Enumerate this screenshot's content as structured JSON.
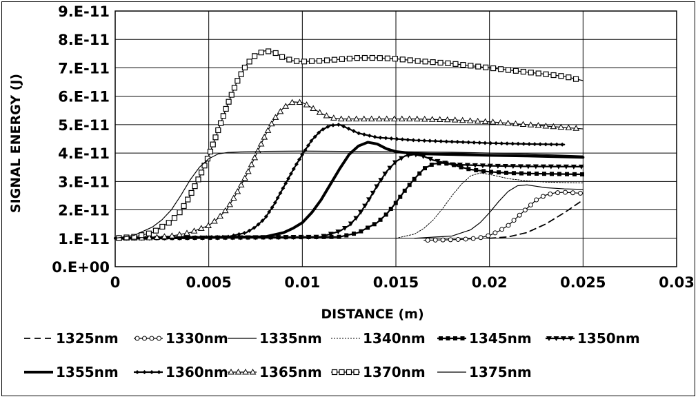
{
  "chart_data": {
    "type": "line",
    "title": "",
    "xlabel": "DISTANCE (m)",
    "ylabel": "SIGNAL ENERGY (J)",
    "xlim": [
      0,
      0.03
    ],
    "ylim": [
      0,
      9e-11
    ],
    "x_ticks": [
      {
        "value": 0,
        "label": "0"
      },
      {
        "value": 0.005,
        "label": "0.005"
      },
      {
        "value": 0.01,
        "label": "0.01"
      },
      {
        "value": 0.015,
        "label": "0.015"
      },
      {
        "value": 0.02,
        "label": "0.02"
      },
      {
        "value": 0.025,
        "label": "0.025"
      },
      {
        "value": 0.03,
        "label": "0.03"
      }
    ],
    "y_ticks": [
      {
        "value": 0,
        "label": "0.E+00"
      },
      {
        "value": 1e-11,
        "label": "1.E-11"
      },
      {
        "value": 2e-11,
        "label": "2.E-11"
      },
      {
        "value": 3e-11,
        "label": "3.E-11"
      },
      {
        "value": 4e-11,
        "label": "4.E-11"
      },
      {
        "value": 5e-11,
        "label": "5.E-11"
      },
      {
        "value": 6e-11,
        "label": "6.E-11"
      },
      {
        "value": 7e-11,
        "label": "7.E-11"
      },
      {
        "value": 8e-11,
        "label": "8.E-11"
      },
      {
        "value": 9e-11,
        "label": "9.E-11"
      }
    ],
    "grid": true,
    "legend_position": "bottom",
    "series": [
      {
        "name": "1325nm",
        "style": "dashed",
        "marker": "none",
        "x": [
          0.02,
          0.021,
          0.022,
          0.023,
          0.024,
          0.025
        ],
        "y": [
          1e-11,
          1.05e-11,
          1.2e-11,
          1.5e-11,
          1.9e-11,
          2.35e-11
        ]
      },
      {
        "name": "1330nm",
        "style": "thin",
        "marker": "circle",
        "x": [
          0.0165,
          0.018,
          0.019,
          0.0195,
          0.02,
          0.0205,
          0.021,
          0.0215,
          0.022,
          0.0225,
          0.023,
          0.0235,
          0.024,
          0.0245,
          0.025
        ],
        "y": [
          9.3e-12,
          9.5e-12,
          9.8e-12,
          1.02e-11,
          1.1e-11,
          1.25e-11,
          1.45e-11,
          1.75e-11,
          2.05e-11,
          2.35e-11,
          2.52e-11,
          2.6e-11,
          2.62e-11,
          2.6e-11,
          2.58e-11
        ]
      },
      {
        "name": "1335nm",
        "style": "thin",
        "marker": "none",
        "x": [
          0.016,
          0.018,
          0.019,
          0.0195,
          0.02,
          0.0205,
          0.021,
          0.0215,
          0.022,
          0.0225,
          0.023,
          0.024,
          0.025
        ],
        "y": [
          1e-11,
          1.08e-11,
          1.3e-11,
          1.55e-11,
          1.9e-11,
          2.3e-11,
          2.65e-11,
          2.85e-11,
          2.88e-11,
          2.83e-11,
          2.78e-11,
          2.74e-11,
          2.72e-11
        ]
      },
      {
        "name": "1340nm",
        "style": "dotted",
        "marker": "none",
        "x": [
          0.015,
          0.016,
          0.0165,
          0.017,
          0.0175,
          0.018,
          0.0185,
          0.019,
          0.0195,
          0.02,
          0.021,
          0.022,
          0.023,
          0.024,
          0.025
        ],
        "y": [
          1e-11,
          1.15e-11,
          1.35e-11,
          1.65e-11,
          2.05e-11,
          2.5e-11,
          2.9e-11,
          3.2e-11,
          3.3e-11,
          3.25e-11,
          3.1e-11,
          3.02e-11,
          2.98e-11,
          2.96e-11,
          2.95e-11
        ]
      },
      {
        "name": "1345nm",
        "style": "medium",
        "marker": "square",
        "x": [
          0.0,
          0.012,
          0.013,
          0.014,
          0.0145,
          0.015,
          0.0155,
          0.016,
          0.0165,
          0.017,
          0.0175,
          0.018,
          0.0185,
          0.019,
          0.02,
          0.021,
          0.022,
          0.023,
          0.024,
          0.025
        ],
        "y": [
          1e-11,
          1.05e-11,
          1.2e-11,
          1.55e-11,
          1.85e-11,
          2.25e-11,
          2.7e-11,
          3.1e-11,
          3.45e-11,
          3.62e-11,
          3.65e-11,
          3.6e-11,
          3.5e-11,
          3.42e-11,
          3.34e-11,
          3.3e-11,
          3.28e-11,
          3.27e-11,
          3.26e-11,
          3.25e-11
        ]
      },
      {
        "name": "1350nm",
        "style": "medium",
        "marker": "triangle-down",
        "x": [
          0.0,
          0.011,
          0.012,
          0.0125,
          0.013,
          0.0135,
          0.014,
          0.0145,
          0.015,
          0.0155,
          0.016,
          0.0165,
          0.017,
          0.018,
          0.02,
          0.022,
          0.025
        ],
        "y": [
          1e-11,
          1.05e-11,
          1.25e-11,
          1.45e-11,
          1.8e-11,
          2.3e-11,
          2.85e-11,
          3.35e-11,
          3.7e-11,
          3.9e-11,
          3.95e-11,
          3.88e-11,
          3.75e-11,
          3.6e-11,
          3.55e-11,
          3.53e-11,
          3.52e-11
        ]
      },
      {
        "name": "1355nm",
        "style": "thick",
        "marker": "none",
        "x": [
          0.0,
          0.008,
          0.009,
          0.0095,
          0.01,
          0.0105,
          0.011,
          0.0115,
          0.012,
          0.0125,
          0.013,
          0.0135,
          0.014,
          0.0145,
          0.015,
          0.016,
          0.018,
          0.02,
          0.022,
          0.025
        ],
        "y": [
          1e-11,
          1.05e-11,
          1.2e-11,
          1.35e-11,
          1.55e-11,
          1.9e-11,
          2.35e-11,
          2.9e-11,
          3.45e-11,
          3.95e-11,
          4.25e-11,
          4.38e-11,
          4.32e-11,
          4.15e-11,
          4.05e-11,
          3.98e-11,
          3.95e-11,
          3.92e-11,
          3.9e-11,
          3.85e-11
        ]
      },
      {
        "name": "1360nm",
        "style": "medium",
        "marker": "diamond",
        "x": [
          0.0,
          0.006,
          0.007,
          0.0075,
          0.008,
          0.0085,
          0.009,
          0.0095,
          0.01,
          0.0105,
          0.011,
          0.0115,
          0.012,
          0.0125,
          0.013,
          0.014,
          0.016,
          0.018,
          0.02,
          0.022,
          0.024
        ],
        "y": [
          1e-11,
          1.05e-11,
          1.2e-11,
          1.4e-11,
          1.7e-11,
          2.2e-11,
          2.8e-11,
          3.4e-11,
          3.95e-11,
          4.45e-11,
          4.8e-11,
          4.97e-11,
          5e-11,
          4.85e-11,
          4.7e-11,
          4.55e-11,
          4.45e-11,
          4.4e-11,
          4.35e-11,
          4.32e-11,
          4.3e-11
        ]
      },
      {
        "name": "1365nm",
        "style": "thin",
        "marker": "triangle-up",
        "x": [
          0.0,
          0.002,
          0.003,
          0.004,
          0.005,
          0.0055,
          0.006,
          0.0065,
          0.007,
          0.0075,
          0.008,
          0.0085,
          0.009,
          0.0095,
          0.01,
          0.0105,
          0.011,
          0.0115,
          0.012,
          0.013,
          0.014,
          0.016,
          0.018,
          0.02,
          0.022,
          0.024,
          0.025
        ],
        "y": [
          1e-11,
          1.02e-11,
          1.08e-11,
          1.2e-11,
          1.45e-11,
          1.7e-11,
          2.05e-11,
          2.6e-11,
          3.2e-11,
          3.9e-11,
          4.6e-11,
          5.2e-11,
          5.6e-11,
          5.8e-11,
          5.78e-11,
          5.6e-11,
          5.4e-11,
          5.25e-11,
          5.2e-11,
          5.2e-11,
          5.2e-11,
          5.2e-11,
          5.17e-11,
          5.1e-11,
          5e-11,
          4.9e-11,
          4.85e-11
        ]
      },
      {
        "name": "1370nm",
        "style": "thin",
        "marker": "square-open",
        "x": [
          0.0,
          0.001,
          0.002,
          0.003,
          0.0035,
          0.004,
          0.0045,
          0.005,
          0.0055,
          0.006,
          0.0065,
          0.007,
          0.0075,
          0.008,
          0.0085,
          0.009,
          0.0095,
          0.01,
          0.011,
          0.012,
          0.013,
          0.014,
          0.015,
          0.016,
          0.018,
          0.02,
          0.022,
          0.024,
          0.025
        ],
        "y": [
          1e-11,
          1.05e-11,
          1.2e-11,
          1.6e-11,
          1.95e-11,
          2.5e-11,
          3.15e-11,
          3.9e-11,
          4.8e-11,
          5.7e-11,
          6.5e-11,
          7.1e-11,
          7.45e-11,
          7.6e-11,
          7.55e-11,
          7.35e-11,
          7.25e-11,
          7.22e-11,
          7.25e-11,
          7.3e-11,
          7.35e-11,
          7.35e-11,
          7.32e-11,
          7.25e-11,
          7.15e-11,
          7e-11,
          6.85e-11,
          6.7e-11,
          6.55e-11
        ]
      },
      {
        "name": "1375nm",
        "style": "thin",
        "marker": "none",
        "x": [
          0.0,
          0.001,
          0.002,
          0.0025,
          0.003,
          0.0035,
          0.004,
          0.0045,
          0.005,
          0.0055,
          0.006,
          0.007,
          0.008,
          0.01,
          0.012,
          0.015,
          0.018,
          0.02,
          0.022,
          0.025
        ],
        "y": [
          1e-11,
          1.1e-11,
          1.4e-11,
          1.65e-11,
          2e-11,
          2.5e-11,
          3.05e-11,
          3.5e-11,
          3.8e-11,
          3.97e-11,
          4.02e-11,
          4.05e-11,
          4.06e-11,
          4.07e-11,
          4.06e-11,
          4.05e-11,
          4.03e-11,
          4e-11,
          3.97e-11,
          3.9e-11
        ]
      }
    ]
  }
}
